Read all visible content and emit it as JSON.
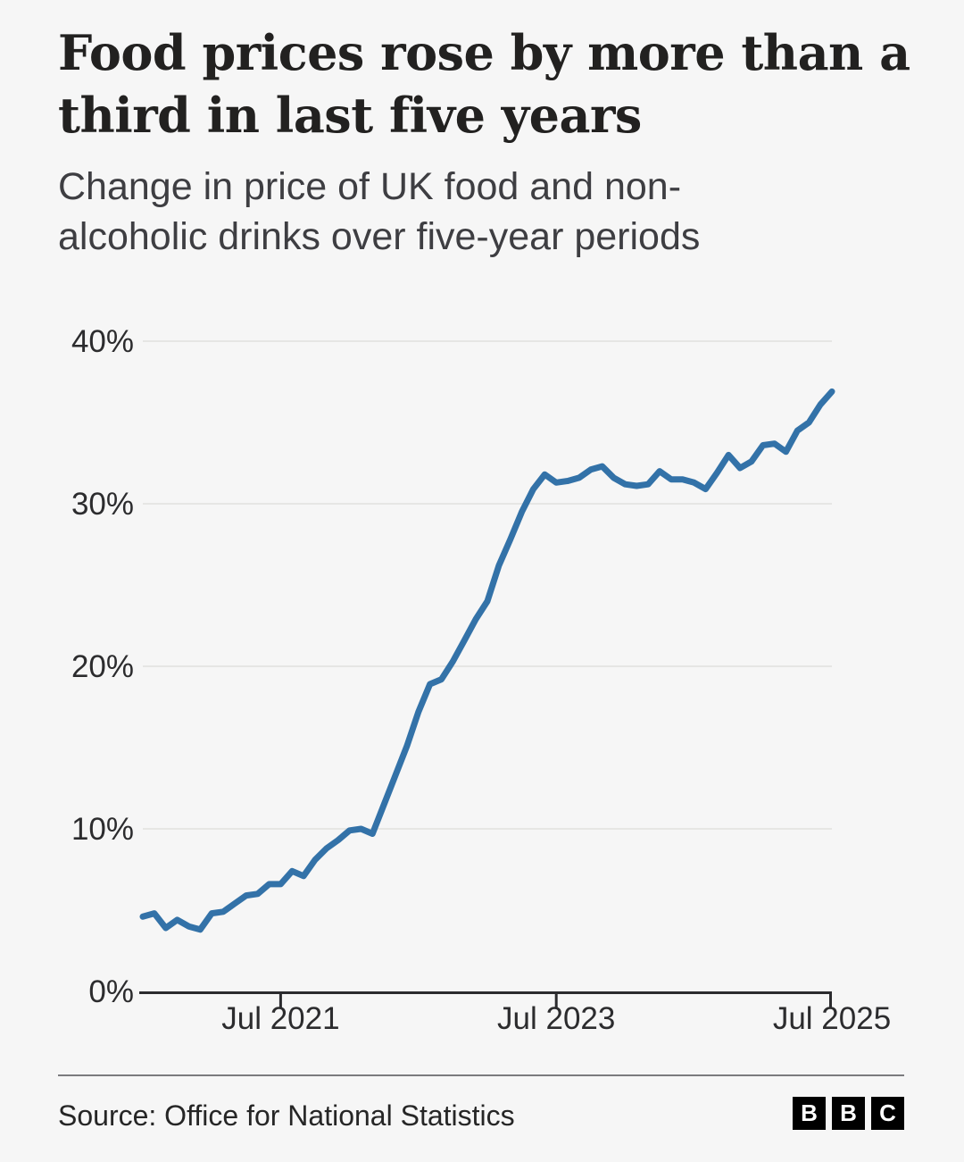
{
  "header": {
    "title": "Food prices rose by more than a third in last five years",
    "subtitle": "Change in price of UK food and non-alcoholic drinks over five-year periods"
  },
  "chart_data": {
    "type": "line",
    "title": "Food prices rose by more than a third in last five years",
    "subtitle": "Change in price of UK food and non-alcoholic drinks over five-year periods",
    "series_name": "Five-year change in UK food and non-alcoholic drink prices (%)",
    "x": [
      "Jul 2020",
      "Aug 2020",
      "Sep 2020",
      "Oct 2020",
      "Nov 2020",
      "Dec 2020",
      "Jan 2021",
      "Feb 2021",
      "Mar 2021",
      "Apr 2021",
      "May 2021",
      "Jun 2021",
      "Jul 2021",
      "Aug 2021",
      "Sep 2021",
      "Oct 2021",
      "Nov 2021",
      "Dec 2021",
      "Jan 2022",
      "Feb 2022",
      "Mar 2022",
      "Apr 2022",
      "May 2022",
      "Jun 2022",
      "Jul 2022",
      "Aug 2022",
      "Sep 2022",
      "Oct 2022",
      "Nov 2022",
      "Dec 2022",
      "Jan 2023",
      "Feb 2023",
      "Mar 2023",
      "Apr 2023",
      "May 2023",
      "Jun 2023",
      "Jul 2023",
      "Aug 2023",
      "Sep 2023",
      "Oct 2023",
      "Nov 2023",
      "Dec 2023",
      "Jan 2024",
      "Feb 2024",
      "Mar 2024",
      "Apr 2024",
      "May 2024",
      "Jun 2024",
      "Jul 2024",
      "Aug 2024",
      "Sep 2024",
      "Oct 2024",
      "Nov 2024",
      "Dec 2024",
      "Jan 2025",
      "Feb 2025",
      "Mar 2025",
      "Apr 2025",
      "May 2025",
      "Jun 2025",
      "Jul 2025"
    ],
    "values": [
      4.6,
      4.8,
      3.9,
      4.4,
      4.0,
      3.8,
      4.8,
      4.9,
      5.4,
      5.9,
      6.0,
      6.6,
      6.6,
      7.4,
      7.1,
      8.1,
      8.8,
      9.3,
      9.9,
      10.0,
      9.7,
      11.5,
      13.3,
      15.1,
      17.2,
      18.9,
      19.2,
      20.3,
      21.6,
      22.9,
      24.0,
      26.2,
      27.8,
      29.5,
      30.9,
      31.8,
      31.3,
      31.4,
      31.6,
      32.1,
      32.3,
      31.6,
      31.2,
      31.1,
      31.2,
      32.0,
      31.5,
      31.5,
      31.3,
      30.9,
      31.9,
      33.0,
      32.2,
      32.6,
      33.6,
      33.7,
      33.2,
      34.5,
      35.0,
      36.1,
      36.9
    ],
    "ylim": [
      0,
      40
    ],
    "yticks": [
      {
        "value": 0,
        "label": "0%"
      },
      {
        "value": 10,
        "label": "10%"
      },
      {
        "value": 20,
        "label": "20%"
      },
      {
        "value": 30,
        "label": "30%"
      },
      {
        "value": 40,
        "label": "40%"
      }
    ],
    "xticks": [
      {
        "index": 12,
        "label": "Jul 2021"
      },
      {
        "index": 36,
        "label": "Jul 2023"
      },
      {
        "index": 60,
        "label": "Jul 2025"
      }
    ],
    "grid": "horizontal",
    "legend": "none",
    "line_color": "#3372a8",
    "grid_color": "#e6e6e4",
    "axis_color": "#2b2b2e",
    "background_color": "#f6f6f6"
  },
  "footer": {
    "source": "Source: Office for National Statistics",
    "logo_letters": [
      "B",
      "B",
      "C"
    ]
  }
}
